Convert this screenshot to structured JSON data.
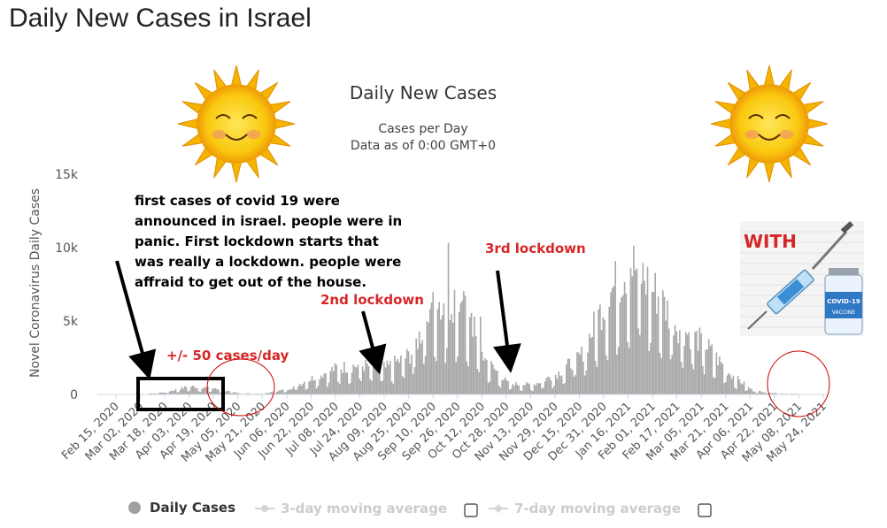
{
  "page": {
    "title": "Daily New Cases in Israel"
  },
  "chart_data": {
    "type": "bar",
    "title": "Daily New Cases",
    "subtitle_1": "Cases per Day",
    "subtitle_2": "Data as of 0:00 GMT+0",
    "ylabel": "Novel Coronavirus Daily Cases",
    "xlabel": "",
    "ylim": [
      0,
      15000
    ],
    "yticks": [
      {
        "value": 0,
        "label": "0"
      },
      {
        "value": 5000,
        "label": "5k"
      },
      {
        "value": 10000,
        "label": "10k"
      },
      {
        "value": 15000,
        "label": "15k"
      }
    ],
    "xtick_labels": [
      "Feb 15, 2020",
      "Mar 02, 2020",
      "Mar 18, 2020",
      "Apr 03, 2020",
      "Apr 19, 2020",
      "May 05, 2020",
      "May 21, 2020",
      "Jun 06, 2020",
      "Jun 22, 2020",
      "Jul 08, 2020",
      "Jul 24, 2020",
      "Aug 09, 2020",
      "Aug 25, 2020",
      "Sep 10, 2020",
      "Sep 26, 2020",
      "Oct 12, 2020",
      "Oct 28, 2020",
      "Nov 13, 2020",
      "Nov 29, 2020",
      "Dec 15, 2020",
      "Dec 31, 2020",
      "Jan 16, 2021",
      "Feb 01, 2021",
      "Feb 17, 2021",
      "Mar 05, 2021",
      "Mar 21, 2021",
      "Apr 06, 2021",
      "Apr 22, 2021",
      "May 08, 2021",
      "May 24, 2021"
    ],
    "x_start": "Feb 15, 2020",
    "interval_days": 16,
    "series": [
      {
        "name": "Daily Cases",
        "color": "#a8a8a8",
        "values_per_interval": [
          0,
          0,
          150,
          550,
          400,
          80,
          50,
          350,
          1100,
          1800,
          2000,
          1800,
          2700,
          6000,
          6500,
          2500,
          750,
          650,
          1400,
          2700,
          6500,
          9000,
          7000,
          4500,
          3500,
          1500,
          250,
          80,
          30,
          20
        ]
      },
      {
        "name": "3-day moving average",
        "color": "#d5d5d5"
      },
      {
        "name": "7-day moving average",
        "color": "#d5d5d5"
      }
    ],
    "grid": false,
    "legend_position": "bottom"
  },
  "annotations": {
    "first_cases_lines": [
      "first cases of covid 19 were",
      "announced in israel. people were in",
      "panic. First lockdown starts that",
      "was really a lockdown. people were",
      "affraid to get out of the house."
    ],
    "cases_per_day": "+/- 50 cases/day",
    "second_lockdown": "2nd lockdown",
    "third_lockdown": "3rd lockdown",
    "with_label": "WITH",
    "vial_label": "COVID-19",
    "vial_sub": "VACCINE"
  },
  "legend": {
    "daily_cases": "Daily Cases",
    "ma3": "3-day moving average",
    "ma7": "7-day moving average"
  },
  "colors": {
    "bar": "#a8a8a8",
    "axis": "#cfd8e6",
    "annotation_red": "#d62728",
    "sun": "#f7c511"
  }
}
